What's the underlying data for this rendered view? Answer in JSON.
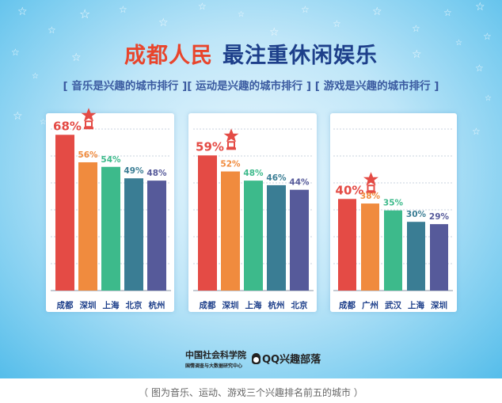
{
  "header": {
    "title_part1": "成都人民",
    "title_part2": "最注重休闲娱乐",
    "subtitle": "[ 音乐是兴趣的城市排行 ][ 运动是兴趣的城市排行 ] [ 游戏是兴趣的城市排行 ]"
  },
  "footer": {
    "cass_name": "中国社会科学院",
    "cass_sub": "国情调查与大数据研究中心",
    "qq_brand": "QQ兴趣部落"
  },
  "caption": "（ 图为音乐、运动、游戏三个兴趣排名前五的城市 ）",
  "colors": [
    "#e44b45",
    "#f08b3e",
    "#3dba8b",
    "#3a7d94",
    "#565a9a"
  ],
  "icons": [
    "star-icon",
    "trophy-icon",
    "penguin-icon"
  ],
  "chart_data": [
    {
      "type": "bar",
      "title": "音乐是兴趣的城市排行",
      "categories": [
        "成都",
        "深圳",
        "上海",
        "北京",
        "杭州"
      ],
      "values": [
        68,
        56,
        54,
        49,
        48
      ],
      "labels": [
        "68%",
        "56%",
        "54%",
        "49%",
        "48%"
      ],
      "unit": "%",
      "ylim": [
        0,
        75
      ],
      "grid": true
    },
    {
      "type": "bar",
      "title": "运动是兴趣的城市排行",
      "categories": [
        "成都",
        "深圳",
        "上海",
        "杭州",
        "北京"
      ],
      "values": [
        59,
        52,
        48,
        46,
        44
      ],
      "labels": [
        "59%",
        "52%",
        "48%",
        "46%",
        "44%"
      ],
      "unit": "%",
      "ylim": [
        0,
        75
      ],
      "grid": true
    },
    {
      "type": "bar",
      "title": "游戏是兴趣的城市排行",
      "categories": [
        "成都",
        "广州",
        "武汉",
        "上海",
        "深圳"
      ],
      "values": [
        40,
        38,
        35,
        30,
        29
      ],
      "labels": [
        "40%",
        "38%",
        "35%",
        "30%",
        "29%"
      ],
      "unit": "%",
      "ylim": [
        0,
        75
      ],
      "grid": true
    }
  ]
}
